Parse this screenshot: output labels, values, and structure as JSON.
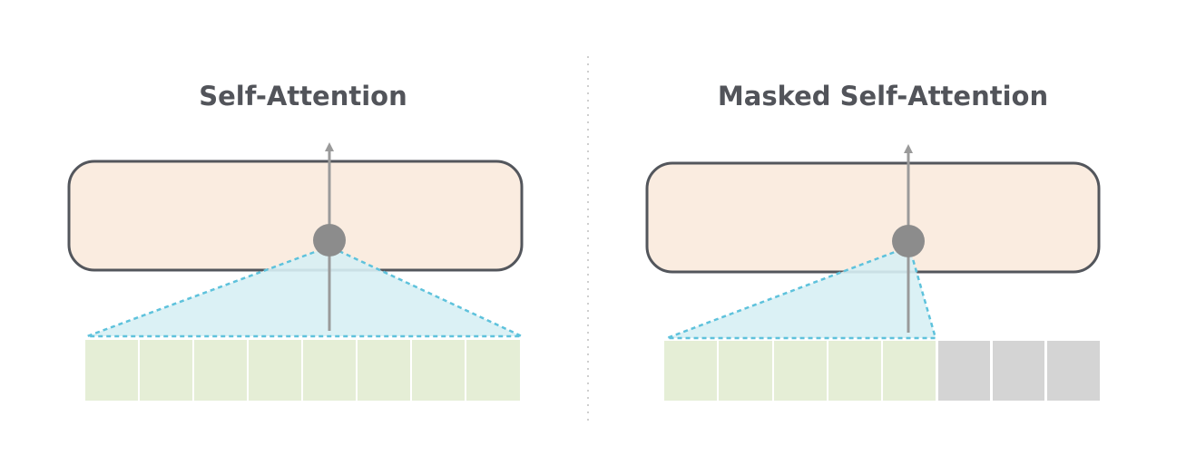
{
  "colors": {
    "background": "#ffffff",
    "title": "#52545a",
    "block_fill": "#faece0",
    "block_stroke": "#53565c",
    "arrow": "#9a9a9a",
    "node": "#8c8c8c",
    "attention_fill": "#d7eff4",
    "attention_stroke": "#5ec2dc",
    "token_visible": "#e5eed6",
    "token_masked": "#d4d4d4",
    "divider": "#cfcfcf"
  },
  "panels": [
    {
      "title": "Self-Attention",
      "tokens_total": 8,
      "tokens_attended": 8,
      "token_states": [
        "visible",
        "visible",
        "visible",
        "visible",
        "visible",
        "visible",
        "visible",
        "visible"
      ]
    },
    {
      "title": "Masked Self-Attention",
      "tokens_total": 8,
      "tokens_attended": 5,
      "token_states": [
        "visible",
        "visible",
        "visible",
        "visible",
        "visible",
        "masked",
        "masked",
        "masked"
      ]
    }
  ]
}
